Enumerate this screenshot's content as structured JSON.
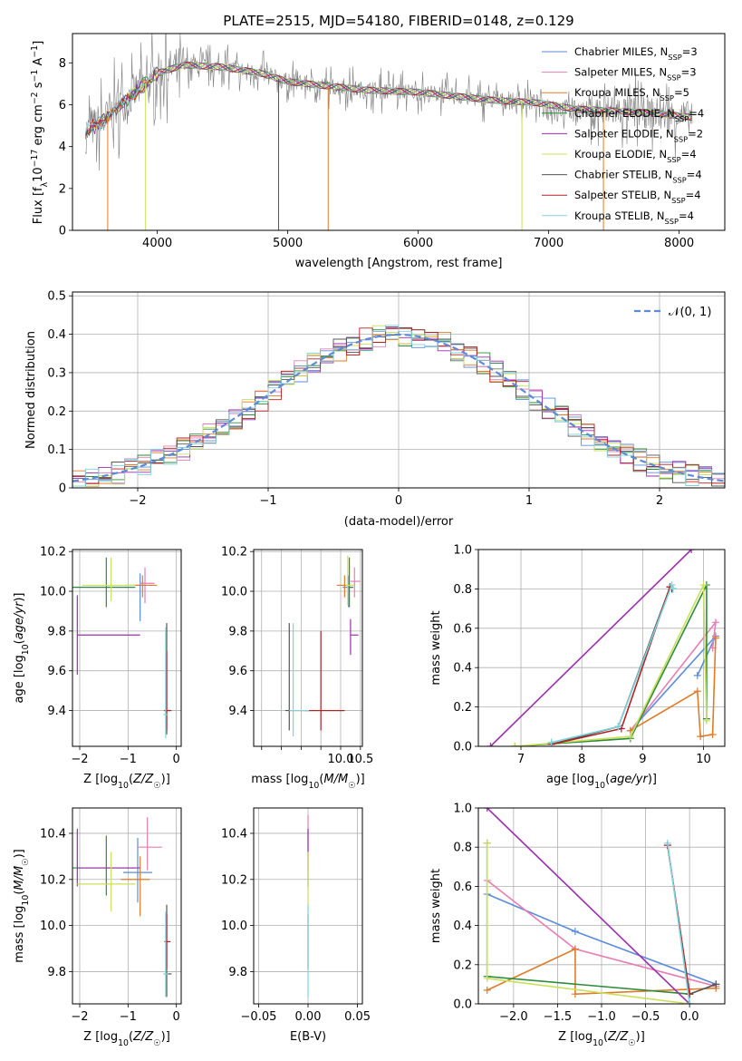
{
  "figure": {
    "title": "PLATE=2515, MJD=54180, FIBERID=0148, z=0.129"
  },
  "colors": {
    "Chabrier MILES": "#5b8bd9",
    "Salpeter MILES": "#e87db4",
    "Kroupa MILES": "#e07b28",
    "Chabrier ELODIE": "#2e8b3a",
    "Salpeter ELODIE": "#9b2fae",
    "Kroupa ELODIE": "#c8e05a",
    "Chabrier STELIB": "#555555",
    "Salpeter STELIB": "#b22222",
    "Kroupa STELIB": "#7fd3de",
    "data": "#7f7f7f",
    "gaussian": "#5b8bd9"
  },
  "chart_data": [
    {
      "id": "spectrum",
      "type": "line",
      "title": "PLATE=2515, MJD=54180, FIBERID=0148, z=0.129",
      "xlabel": "wavelength [Angstrom, rest frame]",
      "ylabel": "Flux [f_λ 10^-17 erg cm^-2 s^-1 A^-1]",
      "xlim": [
        3350,
        8350
      ],
      "ylim": [
        0,
        9.4
      ],
      "xticks": [
        4000,
        5000,
        6000,
        7000,
        8000
      ],
      "yticks": [
        0,
        2,
        4,
        6,
        8
      ],
      "grid": false,
      "legend_position": "right",
      "legend": [
        "Chabrier MILES, N_SSP=3",
        "Salpeter MILES, N_SSP=3",
        "Kroupa MILES, N_SSP=5",
        "Chabrier ELODIE, N_SSP=4",
        "Salpeter ELODIE, N_SSP=2",
        "Kroupa ELODIE, N_SSP=4",
        "Chabrier STELIB, N_SSP=4",
        "Salpeter STELIB, N_SSP=4",
        "Kroupa STELIB, N_SSP=4"
      ],
      "data_wavelength_range": [
        3450,
        8100
      ],
      "continuum": {
        "x": [
          3450,
          3600,
          3700,
          3850,
          4000,
          4200,
          4500,
          4800,
          5000,
          5300,
          5600,
          6000,
          6300,
          6600,
          6900,
          7200,
          7500,
          7800,
          8100
        ],
        "y": [
          4.7,
          5.3,
          5.9,
          6.7,
          7.5,
          7.9,
          7.8,
          7.5,
          7.1,
          6.9,
          6.7,
          6.6,
          6.4,
          6.2,
          6.1,
          5.8,
          5.7,
          5.6,
          5.4
        ]
      }
    },
    {
      "id": "residuals",
      "type": "line",
      "xlabel": "(data-model)/error",
      "ylabel": "Normed distribution",
      "xlim": [
        -2.5,
        2.5
      ],
      "ylim": [
        0,
        0.51
      ],
      "xticks": [
        -2,
        -1,
        0,
        1,
        2
      ],
      "yticks": [
        0.0,
        0.1,
        0.2,
        0.3,
        0.4,
        0.5
      ],
      "grid": true,
      "legend": [
        "N(0,1)"
      ],
      "legend_position": "top-right"
    },
    {
      "id": "age_vs_Z",
      "type": "scatter",
      "xlabel": "Z [log10(Z/Z☉)]",
      "ylabel": "age  [log10(age/yr)]",
      "xlim": [
        -2.15,
        0.1
      ],
      "ylim": [
        9.22,
        10.21
      ],
      "xticks": [
        -2,
        -1,
        0
      ],
      "yticks": [
        9.4,
        9.6,
        9.8,
        10.0,
        10.2
      ],
      "grid": true,
      "points": [
        {
          "model": "Chabrier MILES",
          "x": -0.75,
          "y": 10.03,
          "xerr": [
            0.3,
            0.1
          ],
          "yerr": [
            0.18,
            0.06
          ]
        },
        {
          "model": "Salpeter MILES",
          "x": -0.65,
          "y": 10.04,
          "xerr": [
            0.1,
            0.2
          ],
          "yerr": [
            0.1,
            0.08
          ]
        },
        {
          "model": "Kroupa MILES",
          "x": -0.7,
          "y": 10.03,
          "xerr": [
            0.2,
            0.3
          ],
          "yerr": [
            0.06,
            0.05
          ]
        },
        {
          "model": "Chabrier ELODIE",
          "x": -1.45,
          "y": 10.02,
          "xerr": [
            0.7,
            0.6
          ],
          "yerr": [
            0.1,
            0.15
          ]
        },
        {
          "model": "Salpeter ELODIE",
          "x": -2.05,
          "y": 9.78,
          "xerr": [
            0.0,
            1.3
          ],
          "yerr": [
            0.2,
            0.2
          ]
        },
        {
          "model": "Kroupa ELODIE",
          "x": -1.35,
          "y": 10.03,
          "xerr": [
            0.6,
            0.5
          ],
          "yerr": [
            0.08,
            0.14
          ]
        },
        {
          "model": "Chabrier STELIB",
          "x": -0.2,
          "y": 9.4,
          "xerr": [
            0.05,
            0.1
          ],
          "yerr": [
            0.12,
            0.44
          ]
        },
        {
          "model": "Salpeter STELIB",
          "x": -0.2,
          "y": 9.4,
          "xerr": [
            0.05,
            0.08
          ],
          "yerr": [
            0.1,
            0.3
          ]
        },
        {
          "model": "Kroupa STELIB",
          "x": -0.22,
          "y": 9.38,
          "xerr": [
            0.05,
            0.05
          ],
          "yerr": [
            0.12,
            0.44
          ]
        }
      ]
    },
    {
      "id": "age_vs_mass",
      "type": "scatter",
      "xlabel": "mass [log10(M/M☉)]",
      "ylabel": "",
      "xlim": [
        7.8,
        10.55
      ],
      "ylim": [
        9.22,
        10.21
      ],
      "xticks": [
        8.0,
        8.5,
        9.0,
        9.5,
        10.0,
        10.5
      ],
      "xticklabels": [
        "",
        "",
        "",
        "",
        "10.0",
        "10.5"
      ],
      "yticks": [
        9.4,
        9.6,
        9.8,
        10.0,
        10.2
      ],
      "grid": true,
      "points": [
        {
          "model": "Chabrier MILES",
          "x": 10.2,
          "y": 10.02,
          "xerr": [
            0.15,
            0.1
          ],
          "yerr": [
            0.1,
            0.06
          ]
        },
        {
          "model": "Salpeter MILES",
          "x": 10.35,
          "y": 10.05,
          "xerr": [
            0.1,
            0.15
          ],
          "yerr": [
            0.08,
            0.07
          ]
        },
        {
          "model": "Kroupa MILES",
          "x": 10.1,
          "y": 10.03,
          "xerr": [
            0.2,
            0.2
          ],
          "yerr": [
            0.06,
            0.05
          ]
        },
        {
          "model": "Chabrier ELODIE",
          "x": 10.22,
          "y": 10.02,
          "xerr": [
            0.05,
            0.1
          ],
          "yerr": [
            0.1,
            0.15
          ]
        },
        {
          "model": "Salpeter ELODIE",
          "x": 10.25,
          "y": 9.78,
          "xerr": [
            0.0,
            0.2
          ],
          "yerr": [
            0.1,
            0.08
          ]
        },
        {
          "model": "Kroupa ELODIE",
          "x": 10.18,
          "y": 10.03,
          "xerr": [
            0.05,
            0.15
          ],
          "yerr": [
            0.1,
            0.15
          ]
        },
        {
          "model": "Chabrier STELIB",
          "x": 8.7,
          "y": 9.4,
          "xerr": [
            0.1,
            1.4
          ],
          "yerr": [
            0.1,
            0.44
          ]
        },
        {
          "model": "Salpeter STELIB",
          "x": 9.5,
          "y": 9.4,
          "xerr": [
            0.4,
            0.6
          ],
          "yerr": [
            0.1,
            0.4
          ]
        },
        {
          "model": "Kroupa STELIB",
          "x": 8.8,
          "y": 9.4,
          "xerr": [
            0.1,
            0.4
          ],
          "yerr": [
            0.13,
            0.44
          ]
        }
      ]
    },
    {
      "id": "weight_vs_age",
      "type": "line",
      "xlabel": "age  [log10(age/yr)]",
      "ylabel": "mass weight",
      "xlim": [
        6.3,
        10.35
      ],
      "ylim": [
        0,
        1.0
      ],
      "xticks": [
        7,
        8,
        9,
        10
      ],
      "yticks": [
        0.0,
        0.2,
        0.4,
        0.6,
        0.8,
        1.0
      ],
      "grid": true,
      "series": [
        {
          "model": "Chabrier MILES",
          "x": [
            9.9,
            10.2,
            8.8
          ],
          "y": [
            0.36,
            0.56,
            0.08
          ]
        },
        {
          "model": "Salpeter MILES",
          "x": [
            10.15,
            10.2,
            8.8
          ],
          "y": [
            0.5,
            0.63,
            0.08
          ]
        },
        {
          "model": "Kroupa MILES",
          "x": [
            8.8,
            9.9,
            9.95,
            10.15,
            10.2
          ],
          "y": [
            0.08,
            0.28,
            0.05,
            0.06,
            0.55
          ]
        },
        {
          "model": "Chabrier ELODIE",
          "x": [
            6.9,
            8.8,
            10.05,
            10.05
          ],
          "y": [
            0.0,
            0.04,
            0.82,
            0.14
          ]
        },
        {
          "model": "Salpeter ELODIE",
          "x": [
            6.5,
            9.8
          ],
          "y": [
            0.0,
            1.0
          ]
        },
        {
          "model": "Kroupa ELODIE",
          "x": [
            6.9,
            8.8,
            10.0,
            10.05
          ],
          "y": [
            0.0,
            0.05,
            0.82,
            0.13
          ]
        },
        {
          "model": "Chabrier STELIB",
          "x": [
            7.5,
            8.6,
            9.45,
            9.5
          ],
          "y": [
            0.01,
            0.1,
            0.81,
            0.8
          ]
        },
        {
          "model": "Salpeter STELIB",
          "x": [
            7.5,
            8.65,
            9.45,
            9.48
          ],
          "y": [
            0.01,
            0.09,
            0.81,
            0.8
          ]
        },
        {
          "model": "Kroupa STELIB",
          "x": [
            7.5,
            8.6,
            9.48,
            9.5
          ],
          "y": [
            0.02,
            0.1,
            0.82,
            0.8
          ]
        }
      ]
    },
    {
      "id": "mass_vs_Z",
      "type": "scatter",
      "xlabel": "Z [log10(Z/Z☉)]",
      "ylabel": "mass [log10(M/M☉)]",
      "xlim": [
        -2.15,
        0.1
      ],
      "ylim": [
        9.66,
        10.51
      ],
      "xticks": [
        -2,
        -1,
        0
      ],
      "yticks": [
        9.8,
        10.0,
        10.2,
        10.4
      ],
      "grid": true,
      "points": [
        {
          "model": "Chabrier MILES",
          "x": -0.8,
          "y": 10.23,
          "xerr": [
            0.3,
            0.3
          ],
          "yerr": [
            0.13,
            0.15
          ]
        },
        {
          "model": "Salpeter MILES",
          "x": -0.6,
          "y": 10.34,
          "xerr": [
            0.2,
            0.3
          ],
          "yerr": [
            0.1,
            0.13
          ]
        },
        {
          "model": "Kroupa MILES",
          "x": -0.75,
          "y": 10.2,
          "xerr": [
            0.4,
            0.2
          ],
          "yerr": [
            0.16,
            0.1
          ]
        },
        {
          "model": "Chabrier ELODIE",
          "x": -1.45,
          "y": 10.25,
          "xerr": [
            0.7,
            0.6
          ],
          "yerr": [
            0.12,
            0.14
          ]
        },
        {
          "model": "Salpeter ELODIE",
          "x": -2.05,
          "y": 10.25,
          "xerr": [
            0.0,
            1.3
          ],
          "yerr": [
            0.08,
            0.17
          ]
        },
        {
          "model": "Kroupa ELODIE",
          "x": -1.35,
          "y": 10.18,
          "xerr": [
            0.7,
            0.5
          ],
          "yerr": [
            0.12,
            0.14
          ]
        },
        {
          "model": "Chabrier STELIB",
          "x": -0.2,
          "y": 9.79,
          "xerr": [
            0.05,
            0.1
          ],
          "yerr": [
            0.1,
            0.3
          ]
        },
        {
          "model": "Salpeter STELIB",
          "x": -0.2,
          "y": 9.93,
          "xerr": [
            0.05,
            0.08
          ],
          "yerr": [
            0.12,
            0.12
          ]
        },
        {
          "model": "Kroupa STELIB",
          "x": -0.22,
          "y": 9.79,
          "xerr": [
            0.05,
            0.05
          ],
          "yerr": [
            0.1,
            0.27
          ]
        }
      ]
    },
    {
      "id": "mass_vs_ebv",
      "type": "scatter",
      "xlabel": "E(B-V)",
      "ylabel": "",
      "xlim": [
        -0.055,
        0.055
      ],
      "ylim": [
        9.66,
        10.51
      ],
      "xticks": [
        -0.05,
        0.0,
        0.05
      ],
      "yticks": [
        9.8,
        10.0,
        10.2,
        10.4
      ],
      "grid": true,
      "points": [
        {
          "model": "Salpeter MILES",
          "x": 0.0,
          "y": 10.34,
          "yerr": [
            0.1,
            0.14
          ]
        },
        {
          "model": "Salpeter ELODIE",
          "x": 0.0,
          "y": 10.25,
          "yerr": [
            0.08,
            0.17
          ]
        },
        {
          "model": "Kroupa ELODIE",
          "x": 0.0,
          "y": 10.18,
          "yerr": [
            0.12,
            0.14
          ]
        },
        {
          "model": "Salpeter STELIB",
          "x": 0.0,
          "y": 9.93,
          "yerr": [
            0.12,
            0.12
          ]
        },
        {
          "model": "Kroupa STELIB",
          "x": 0.0,
          "y": 9.79,
          "yerr": [
            0.1,
            0.3
          ]
        }
      ]
    },
    {
      "id": "weight_vs_Z",
      "type": "line",
      "xlabel": "Z [log10(Z/Z☉)]",
      "ylabel": "mass weight",
      "xlim": [
        -2.4,
        0.4
      ],
      "ylim": [
        0,
        1.0
      ],
      "xticks": [
        -2.0,
        -1.5,
        -1.0,
        -0.5,
        0.0
      ],
      "yticks": [
        0.0,
        0.2,
        0.4,
        0.6,
        0.8,
        1.0
      ],
      "grid": true,
      "series": [
        {
          "model": "Chabrier MILES",
          "x": [
            -2.3,
            -1.3,
            0.3
          ],
          "y": [
            0.56,
            0.37,
            0.1
          ]
        },
        {
          "model": "Salpeter MILES",
          "x": [
            -2.3,
            -1.3,
            0.3
          ],
          "y": [
            0.63,
            0.28,
            0.09
          ]
        },
        {
          "model": "Kroupa MILES",
          "x": [
            -2.3,
            -1.3,
            -1.3,
            0.3
          ],
          "y": [
            0.07,
            0.28,
            0.05,
            0.08
          ]
        },
        {
          "model": "Chabrier ELODIE",
          "x": [
            -2.3,
            -2.3,
            0.0
          ],
          "y": [
            0.82,
            0.14,
            0.05
          ]
        },
        {
          "model": "Salpeter ELODIE",
          "x": [
            -2.3,
            0.0
          ],
          "y": [
            1.0,
            0.0
          ]
        },
        {
          "model": "Kroupa ELODIE",
          "x": [
            -2.3,
            -2.3,
            0.0
          ],
          "y": [
            0.82,
            0.13,
            0.0
          ]
        },
        {
          "model": "Chabrier STELIB",
          "x": [
            -0.25,
            0.0,
            0.3
          ],
          "y": [
            0.81,
            0.05,
            0.1
          ]
        },
        {
          "model": "Salpeter STELIB",
          "x": [
            -0.25,
            0.0
          ],
          "y": [
            0.81,
            0.05
          ]
        },
        {
          "model": "Kroupa STELIB",
          "x": [
            -0.25,
            0.0
          ],
          "y": [
            0.82,
            0.0
          ]
        }
      ]
    }
  ]
}
